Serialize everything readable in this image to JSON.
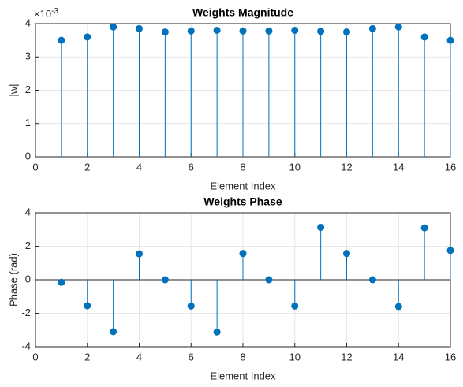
{
  "chart_data": [
    {
      "type": "stem",
      "title": "Weights Magnitude",
      "x_label": "Element Index",
      "y_label": "|w|",
      "y_multiplier": "×10",
      "y_multiplier_exponent": "-3",
      "x": [
        1,
        2,
        3,
        4,
        5,
        6,
        7,
        8,
        9,
        10,
        11,
        12,
        13,
        14,
        15,
        16
      ],
      "series": [
        {
          "color": "#0072bd",
          "values": [
            3.5,
            3.6,
            3.9,
            3.85,
            3.75,
            3.78,
            3.8,
            3.78,
            3.78,
            3.8,
            3.77,
            3.75,
            3.85,
            3.9,
            3.6,
            3.5
          ]
        }
      ],
      "xlim": [
        0,
        16
      ],
      "xticks": [
        0,
        2,
        4,
        6,
        8,
        10,
        12,
        14,
        16
      ],
      "ylim": [
        0,
        4
      ],
      "yticks": [
        0,
        1,
        2,
        3,
        4
      ],
      "grid": true
    },
    {
      "type": "stem",
      "title": "Weights Phase",
      "x_label": "Element Index",
      "y_label": "Phase (rad)",
      "x": [
        1,
        2,
        3,
        4,
        5,
        6,
        7,
        8,
        9,
        10,
        11,
        12,
        13,
        14,
        15,
        16
      ],
      "series": [
        {
          "color": "#0072bd",
          "values": [
            -0.15,
            -1.55,
            -3.1,
            1.55,
            0,
            -1.57,
            -3.12,
            1.57,
            0,
            -1.57,
            3.13,
            1.57,
            0,
            -1.6,
            3.1,
            1.75
          ]
        }
      ],
      "xlim": [
        0,
        16
      ],
      "xticks": [
        0,
        2,
        4,
        6,
        8,
        10,
        12,
        14,
        16
      ],
      "ylim": [
        -4,
        4
      ],
      "yticks": [
        -4,
        -2,
        0,
        2,
        4
      ],
      "grid": true
    }
  ]
}
